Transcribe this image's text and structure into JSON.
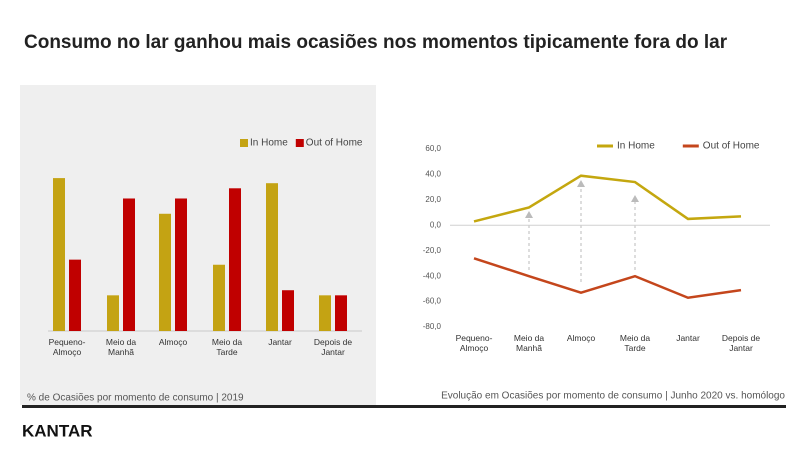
{
  "title": "Consumo no lar ganhou mais ocasiões nos momentos tipicamente fora do lar",
  "chart_data": [
    {
      "type": "bar",
      "categories": [
        "Pequeno-Almoço",
        "Meio da Manhã",
        "Almoço",
        "Meio da Tarde",
        "Jantar",
        "Depois de Jantar"
      ],
      "series": [
        {
          "name": "In Home",
          "color": "#c4a313",
          "values": [
            30,
            7,
            23,
            13,
            29,
            7
          ]
        },
        {
          "name": "Out of Home",
          "color": "#c00000",
          "values": [
            14,
            26,
            26,
            28,
            8,
            7
          ]
        }
      ],
      "ylim": [
        0,
        31
      ],
      "caption": "% de Ocasiões por momento de consumo | 2019"
    },
    {
      "type": "line",
      "categories": [
        "Pequeno-Almoço",
        "Meio da Manhã",
        "Almoço",
        "Meio da Tarde",
        "Jantar",
        "Depois de Jantar"
      ],
      "series": [
        {
          "name": "In Home",
          "color": "#c4a70f",
          "values": [
            3,
            14,
            39,
            34,
            5,
            7
          ]
        },
        {
          "name": "Out of Home",
          "color": "#c4461c",
          "values": [
            -26,
            -40,
            -53,
            -40,
            -57,
            -51
          ]
        }
      ],
      "ylim": [
        -80,
        60
      ],
      "yticks": [
        {
          "value": 60,
          "label": "60,0"
        },
        {
          "value": 40,
          "label": "40,0"
        },
        {
          "value": 20,
          "label": "20,0"
        },
        {
          "value": 0,
          "label": "0,0"
        },
        {
          "value": -20,
          "label": "-20,0"
        },
        {
          "value": -40,
          "label": "-40,0"
        },
        {
          "value": -60,
          "label": "-60,0"
        },
        {
          "value": -80,
          "label": "-80,0"
        }
      ],
      "caption": "Evolução em Ocasiões por momento de consumo | Junho 2020 vs. homólogo"
    }
  ],
  "brand": "KANTAR"
}
